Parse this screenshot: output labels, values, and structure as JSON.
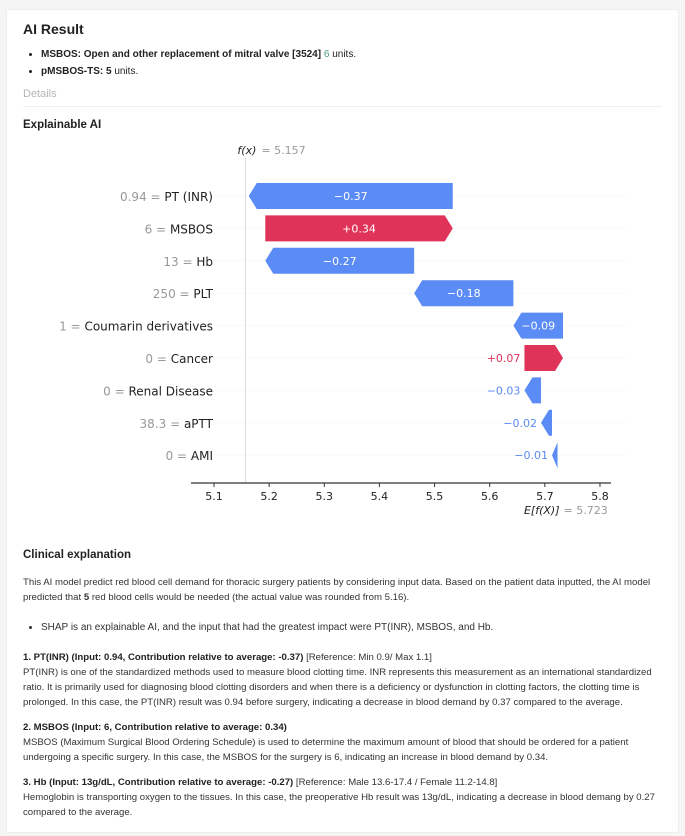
{
  "result": {
    "title": "AI Result",
    "items": [
      {
        "label": "MSBOS: Open and other replacement of mitral valve [3524]",
        "value": "6",
        "suffix": " units."
      },
      {
        "label": "pMSBOS-TS:",
        "value": "5",
        "suffix": " units."
      }
    ],
    "details_label": "Details"
  },
  "xai": {
    "title": "Explainable AI"
  },
  "chart_data": {
    "type": "waterfall",
    "fx_label": "f(x)",
    "fx_value": "= 5.157",
    "fx": 5.157,
    "ex_label": "E[f(X)]",
    "ex_value": "= 5.723",
    "ex": 5.723,
    "xlim": [
      5.07,
      5.82
    ],
    "xticks": [
      "5.1",
      "5.2",
      "5.3",
      "5.4",
      "5.5",
      "5.6",
      "5.7",
      "5.8"
    ],
    "features": [
      {
        "value": "0.94",
        "name": "PT (INR)",
        "shap": -0.37,
        "label": "−0.37"
      },
      {
        "value": "6",
        "name": "MSBOS",
        "shap": 0.34,
        "label": "+0.34"
      },
      {
        "value": "13",
        "name": "Hb",
        "shap": -0.27,
        "label": "−0.27"
      },
      {
        "value": "250",
        "name": "PLT",
        "shap": -0.18,
        "label": "−0.18"
      },
      {
        "value": "1",
        "name": "Coumarin derivatives",
        "shap": -0.09,
        "label": "−0.09"
      },
      {
        "value": "0",
        "name": "Cancer",
        "shap": 0.07,
        "label": "+0.07"
      },
      {
        "value": "0",
        "name": "Renal Disease",
        "shap": -0.03,
        "label": "−0.03"
      },
      {
        "value": "38.3",
        "name": "aPTT",
        "shap": -0.02,
        "label": "−0.02"
      },
      {
        "value": "0",
        "name": "AMI",
        "shap": -0.01,
        "label": "−0.01"
      }
    ],
    "colors": {
      "negative": "#5b8cf5",
      "positive": "#e0335a"
    }
  },
  "clinical": {
    "title": "Clinical explanation",
    "intro_a": "This AI model predict red blood cell demand for thoracic surgery patients by considering input data. Based on the patient data inputted, the AI model predicted that ",
    "intro_b": "5",
    "intro_c": " red blood cells would be needed (the actual value was rounded from 5.16).",
    "bullet": "SHAP is an explainable AI, and the input that had the greatest impact were PT(INR), MSBOS, and Hb.",
    "sections": [
      {
        "heading": "1. PT(INR) (Input: 0.94, Contribution relative to average: -0.37)",
        "ref": " [Reference: Min 0.9/ Max 1.1]",
        "body": "PT(INR) is one of the standardized methods used to measure blood clotting time. INR represents this measurement as an international standardized ratio. It is primarily used for diagnosing blood clotting disorders and when there is a deficiency or dysfunction in clotting factors, the clotting time is prolonged. In this case, the PT(INR) result was 0.94 before surgery, indicating a decrease in blood demand by 0.37 compared to the average."
      },
      {
        "heading": "2. MSBOS (Input: 6, Contribution relative to average: 0.34)",
        "ref": "",
        "body": "MSBOS (Maximum Surgical Blood Ordering Schedule) is used to determine the maximum amount of blood that should be ordered for a patient undergoing a specific surgery. In this case, the MSBOS for the surgery is 6, indicating an increase in blood demand by 0.34."
      },
      {
        "heading": "3. Hb (Input: 13g/dL, Contribution relative to average: -0.27)",
        "ref": " [Reference: Male 13.6-17.4 / Female 11.2-14.8]",
        "body": "Hemoglobin is transporting oxygen to the tissues. In this case, the preoperative Hb result was 13g/dL, indicating a decrease in blood demang by 0.27 compared to the average."
      }
    ]
  }
}
